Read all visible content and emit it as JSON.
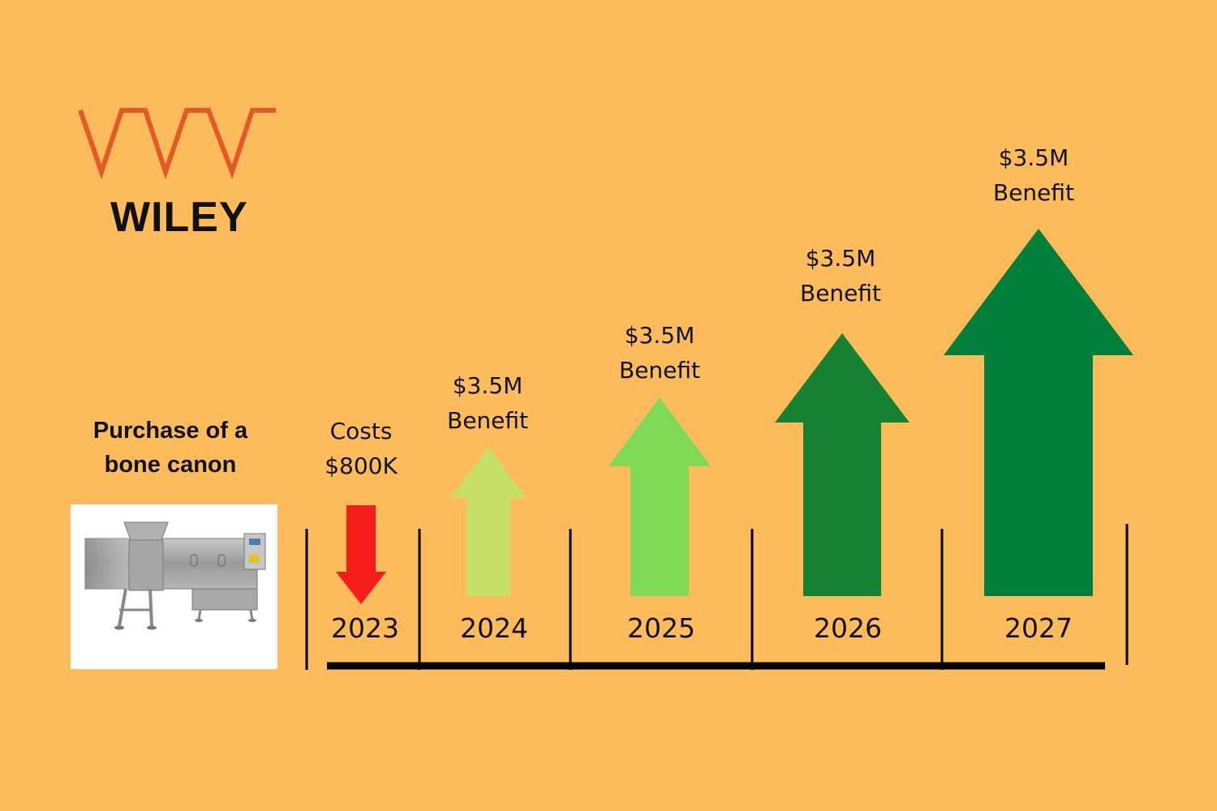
{
  "brand": {
    "name": "WILEY",
    "mark_color": "#E35A27"
  },
  "purchase": {
    "line1": "Purchase of a",
    "line2": "bone canon",
    "image": "bone-cannon-machine"
  },
  "colors": {
    "background": "#FDBB5C",
    "cost": "#F51E1B",
    "benefit_2024": "#C6E067",
    "benefit_2025": "#7ED957",
    "benefit_2026": "#168033",
    "benefit_2027": "#00803A",
    "axis": "#000000"
  },
  "timeline": [
    {
      "year": "2023",
      "line1": "Costs",
      "line2": "$800K",
      "direction": "down",
      "value_usd": -800000
    },
    {
      "year": "2024",
      "line1": "$3.5M",
      "line2": "Benefit",
      "direction": "up",
      "value_usd": 3500000
    },
    {
      "year": "2025",
      "line1": "$3.5M",
      "line2": "Benefit",
      "direction": "up",
      "value_usd": 3500000
    },
    {
      "year": "2026",
      "line1": "$3.5M",
      "line2": "Benefit",
      "direction": "up",
      "value_usd": 3500000
    },
    {
      "year": "2027",
      "line1": "$3.5M",
      "line2": "Benefit",
      "direction": "up",
      "value_usd": 3500000
    }
  ]
}
